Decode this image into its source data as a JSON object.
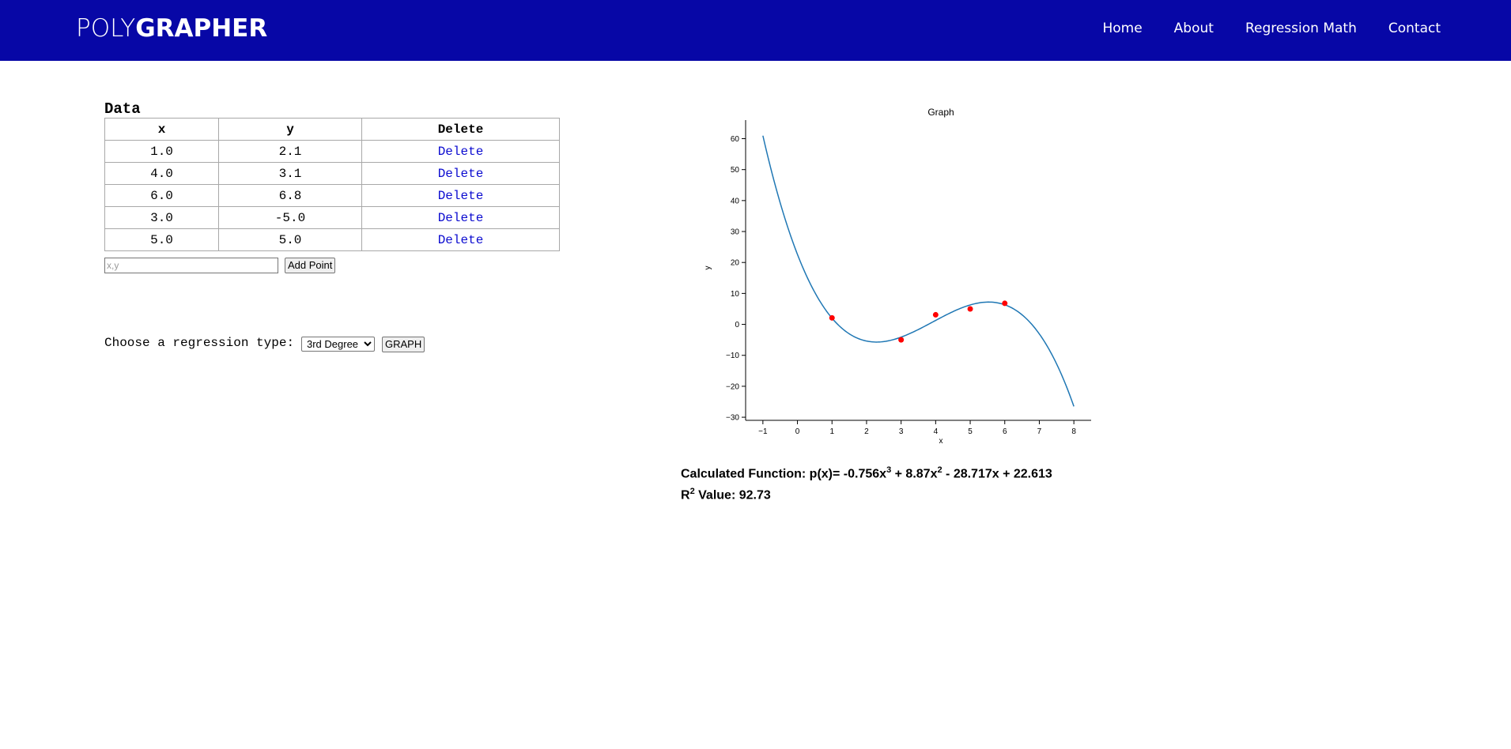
{
  "header": {
    "logo_light": "POLY",
    "logo_bold": "GRAPHER",
    "nav": [
      "Home",
      "About",
      "Regression Math",
      "Contact"
    ],
    "background_color": "#0707a6"
  },
  "data_section": {
    "title": "Data",
    "columns": [
      "x",
      "y",
      "Delete"
    ],
    "rows": [
      {
        "x": "1.0",
        "y": "2.1",
        "action": "Delete"
      },
      {
        "x": "4.0",
        "y": "3.1",
        "action": "Delete"
      },
      {
        "x": "6.0",
        "y": "6.8",
        "action": "Delete"
      },
      {
        "x": "3.0",
        "y": "-5.0",
        "action": "Delete"
      },
      {
        "x": "5.0",
        "y": "5.0",
        "action": "Delete"
      }
    ],
    "input_placeholder": "x,y",
    "add_button": "Add Point"
  },
  "regression": {
    "label": "Choose a regression type:",
    "selected": "3rd Degree",
    "graph_button": "GRAPH"
  },
  "chart_data": {
    "type": "scatter",
    "title": "Graph",
    "xlabel": "x",
    "ylabel": "y",
    "xlim": [
      -1.5,
      8.5
    ],
    "ylim": [
      -31,
      66
    ],
    "xticks": [
      -1,
      0,
      1,
      2,
      3,
      4,
      5,
      6,
      7,
      8
    ],
    "yticks": [
      -30,
      -20,
      -10,
      0,
      10,
      20,
      30,
      40,
      50,
      60
    ],
    "points": [
      {
        "x": 1,
        "y": 2.1
      },
      {
        "x": 4,
        "y": 3.1
      },
      {
        "x": 6,
        "y": 6.8
      },
      {
        "x": 3,
        "y": -5.0
      },
      {
        "x": 5,
        "y": 5.0
      }
    ],
    "fit_coefficients": {
      "a3": -0.756,
      "a2": 8.87,
      "a1": -28.717,
      "a0": 22.613
    },
    "fit_domain": [
      -1,
      8
    ],
    "point_color": "#ff0000",
    "line_color": "#1f77b4"
  },
  "result": {
    "function_prefix": "Calculated Function: p(x)= -0.756x",
    "exp1": "3",
    "function_mid": " + 8.87x",
    "exp2": "2",
    "function_suffix": " - 28.717x + 22.613",
    "r_prefix": "R",
    "r_exp": "2",
    "r_suffix": " Value: 92.73"
  }
}
